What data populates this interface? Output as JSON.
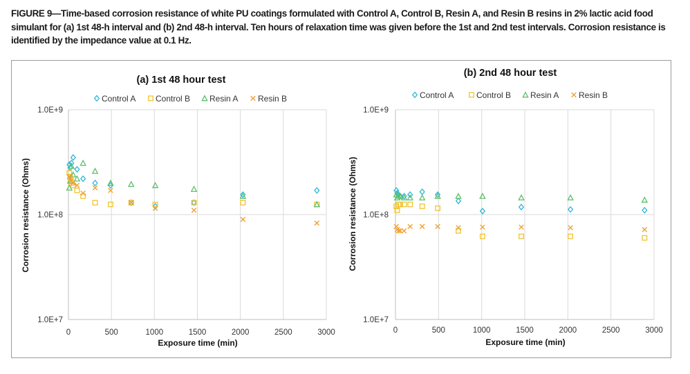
{
  "figure": {
    "caption_label": "FIGURE 9",
    "caption_text": "—Time-based corrosion resistance of white PU coatings formulated with Control A, Control B, Resin A, and Resin B resins in 2% lactic acid food simulant for (a) 1st 48-h interval and (b) 2nd 48-h interval. Ten hours of relaxation time was given before the 1st and 2nd test intervals. Corrosion resistance is identified by the impedance value at 0.1 Hz."
  },
  "colors": {
    "control_a": "#2db7d6",
    "control_b": "#f2c230",
    "resin_a": "#5dbf6c",
    "resin_b": "#f0a030",
    "grid": "#d9d9d9",
    "axis": "#bfbfbf"
  },
  "series_style": {
    "Control A": {
      "marker": "diamond",
      "color": "#2db7d6"
    },
    "Control B": {
      "marker": "square",
      "color": "#f2c230"
    },
    "Resin A": {
      "marker": "triangle",
      "color": "#5dbf6c"
    },
    "Resin B": {
      "marker": "x",
      "color": "#f0a030"
    }
  },
  "chart_data": [
    {
      "type": "scatter",
      "title": "(a) 1st 48 hour test",
      "xlabel": "Exposure time (min)",
      "ylabel": "Corrosion resistance (Ohms)",
      "xlim": [
        0,
        3000
      ],
      "ylim": [
        10000000,
        1000000000
      ],
      "yscale": "log",
      "xticks": [
        "0",
        "500",
        "1000",
        "1500",
        "2000",
        "2500",
        "3000"
      ],
      "yticks": [
        "1.0E+7",
        "1.0E+8",
        "1.0E+9"
      ],
      "grid": true,
      "legend_position": "top",
      "series": [
        {
          "name": "Control A",
          "x": [
            10,
            20,
            35,
            55,
            100,
            170,
            310,
            490,
            730,
            1010,
            1460,
            2030,
            2890
          ],
          "y": [
            300000000,
            280000000,
            310000000,
            350000000,
            270000000,
            220000000,
            200000000,
            190000000,
            130000000,
            120000000,
            130000000,
            155000000,
            170000000
          ]
        },
        {
          "name": "Control B",
          "x": [
            10,
            20,
            35,
            55,
            100,
            170,
            310,
            490,
            730,
            1010,
            1460,
            2030,
            2890
          ],
          "y": [
            250000000,
            230000000,
            200000000,
            190000000,
            170000000,
            150000000,
            130000000,
            125000000,
            130000000,
            125000000,
            130000000,
            130000000,
            125000000
          ]
        },
        {
          "name": "Resin A",
          "x": [
            10,
            20,
            35,
            55,
            100,
            170,
            310,
            490,
            730,
            1010,
            1460,
            2030,
            2890
          ],
          "y": [
            180000000,
            210000000,
            290000000,
            240000000,
            220000000,
            310000000,
            260000000,
            200000000,
            195000000,
            190000000,
            175000000,
            150000000,
            125000000
          ]
        },
        {
          "name": "Resin B",
          "x": [
            10,
            20,
            35,
            55,
            100,
            170,
            310,
            490,
            730,
            1010,
            1460,
            2030,
            2890
          ],
          "y": [
            230000000,
            220000000,
            210000000,
            200000000,
            190000000,
            160000000,
            180000000,
            170000000,
            130000000,
            115000000,
            110000000,
            90000000,
            83000000
          ]
        }
      ]
    },
    {
      "type": "scatter",
      "title": "(b) 2nd 48 hour test",
      "xlabel": "Exposure time (min)",
      "ylabel": "Corrosion resistance (Ohms)",
      "xlim": [
        0,
        3000
      ],
      "ylim": [
        10000000,
        1000000000
      ],
      "yscale": "log",
      "xticks": [
        "0",
        "500",
        "1000",
        "1500",
        "2000",
        "2500",
        "3000"
      ],
      "yticks": [
        "1.0E+7",
        "1.0E+8",
        "1.0E+9"
      ],
      "grid": true,
      "legend_position": "top",
      "series": [
        {
          "name": "Control A",
          "x": [
            10,
            20,
            35,
            55,
            100,
            170,
            310,
            490,
            730,
            1010,
            1460,
            2030,
            2890
          ],
          "y": [
            170000000,
            160000000,
            155000000,
            150000000,
            150000000,
            155000000,
            165000000,
            155000000,
            135000000,
            108000000,
            118000000,
            112000000,
            110000000
          ]
        },
        {
          "name": "Control B",
          "x": [
            10,
            20,
            35,
            55,
            100,
            170,
            310,
            490,
            730,
            1010,
            1460,
            2030,
            2890
          ],
          "y": [
            120000000,
            110000000,
            125000000,
            125000000,
            125000000,
            125000000,
            120000000,
            115000000,
            70000000,
            62000000,
            62000000,
            62000000,
            60000000
          ]
        },
        {
          "name": "Resin A",
          "x": [
            10,
            20,
            35,
            55,
            100,
            170,
            310,
            490,
            730,
            1010,
            1460,
            2030,
            2890
          ],
          "y": [
            155000000,
            145000000,
            150000000,
            150000000,
            145000000,
            145000000,
            145000000,
            150000000,
            150000000,
            150000000,
            145000000,
            145000000,
            138000000
          ]
        },
        {
          "name": "Resin B",
          "x": [
            10,
            20,
            35,
            55,
            100,
            170,
            310,
            490,
            730,
            1010,
            1460,
            2030,
            2890
          ],
          "y": [
            77000000,
            72000000,
            70000000,
            70000000,
            70000000,
            77000000,
            77000000,
            77000000,
            75000000,
            76000000,
            76000000,
            75000000,
            72000000
          ]
        }
      ]
    }
  ]
}
